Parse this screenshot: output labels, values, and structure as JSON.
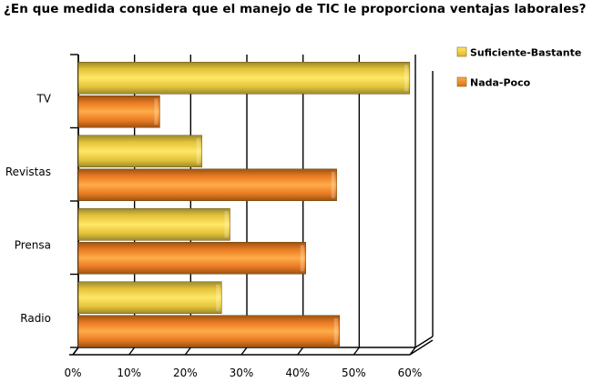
{
  "chart_data": {
    "type": "bar",
    "orientation": "horizontal",
    "title": "¿En que medida considera que el manejo de TIC le proporciona ventajas laborales?",
    "categories": [
      "TV",
      "Revistas",
      "Prensa",
      "Radio"
    ],
    "series": [
      {
        "name": "Suficiente-Bastante",
        "color": "#F5C73A",
        "values": [
          59,
          22,
          27,
          25.5
        ]
      },
      {
        "name": "Nada-Poco",
        "color": "#F08426",
        "values": [
          14.5,
          46,
          40.5,
          46.5
        ]
      }
    ],
    "x_ticks": [
      "0%",
      "10%",
      "20%",
      "30%",
      "40%",
      "50%",
      "60%"
    ],
    "xlim": [
      0,
      60
    ],
    "grid": true,
    "legend": "top-right",
    "style": "3d"
  }
}
